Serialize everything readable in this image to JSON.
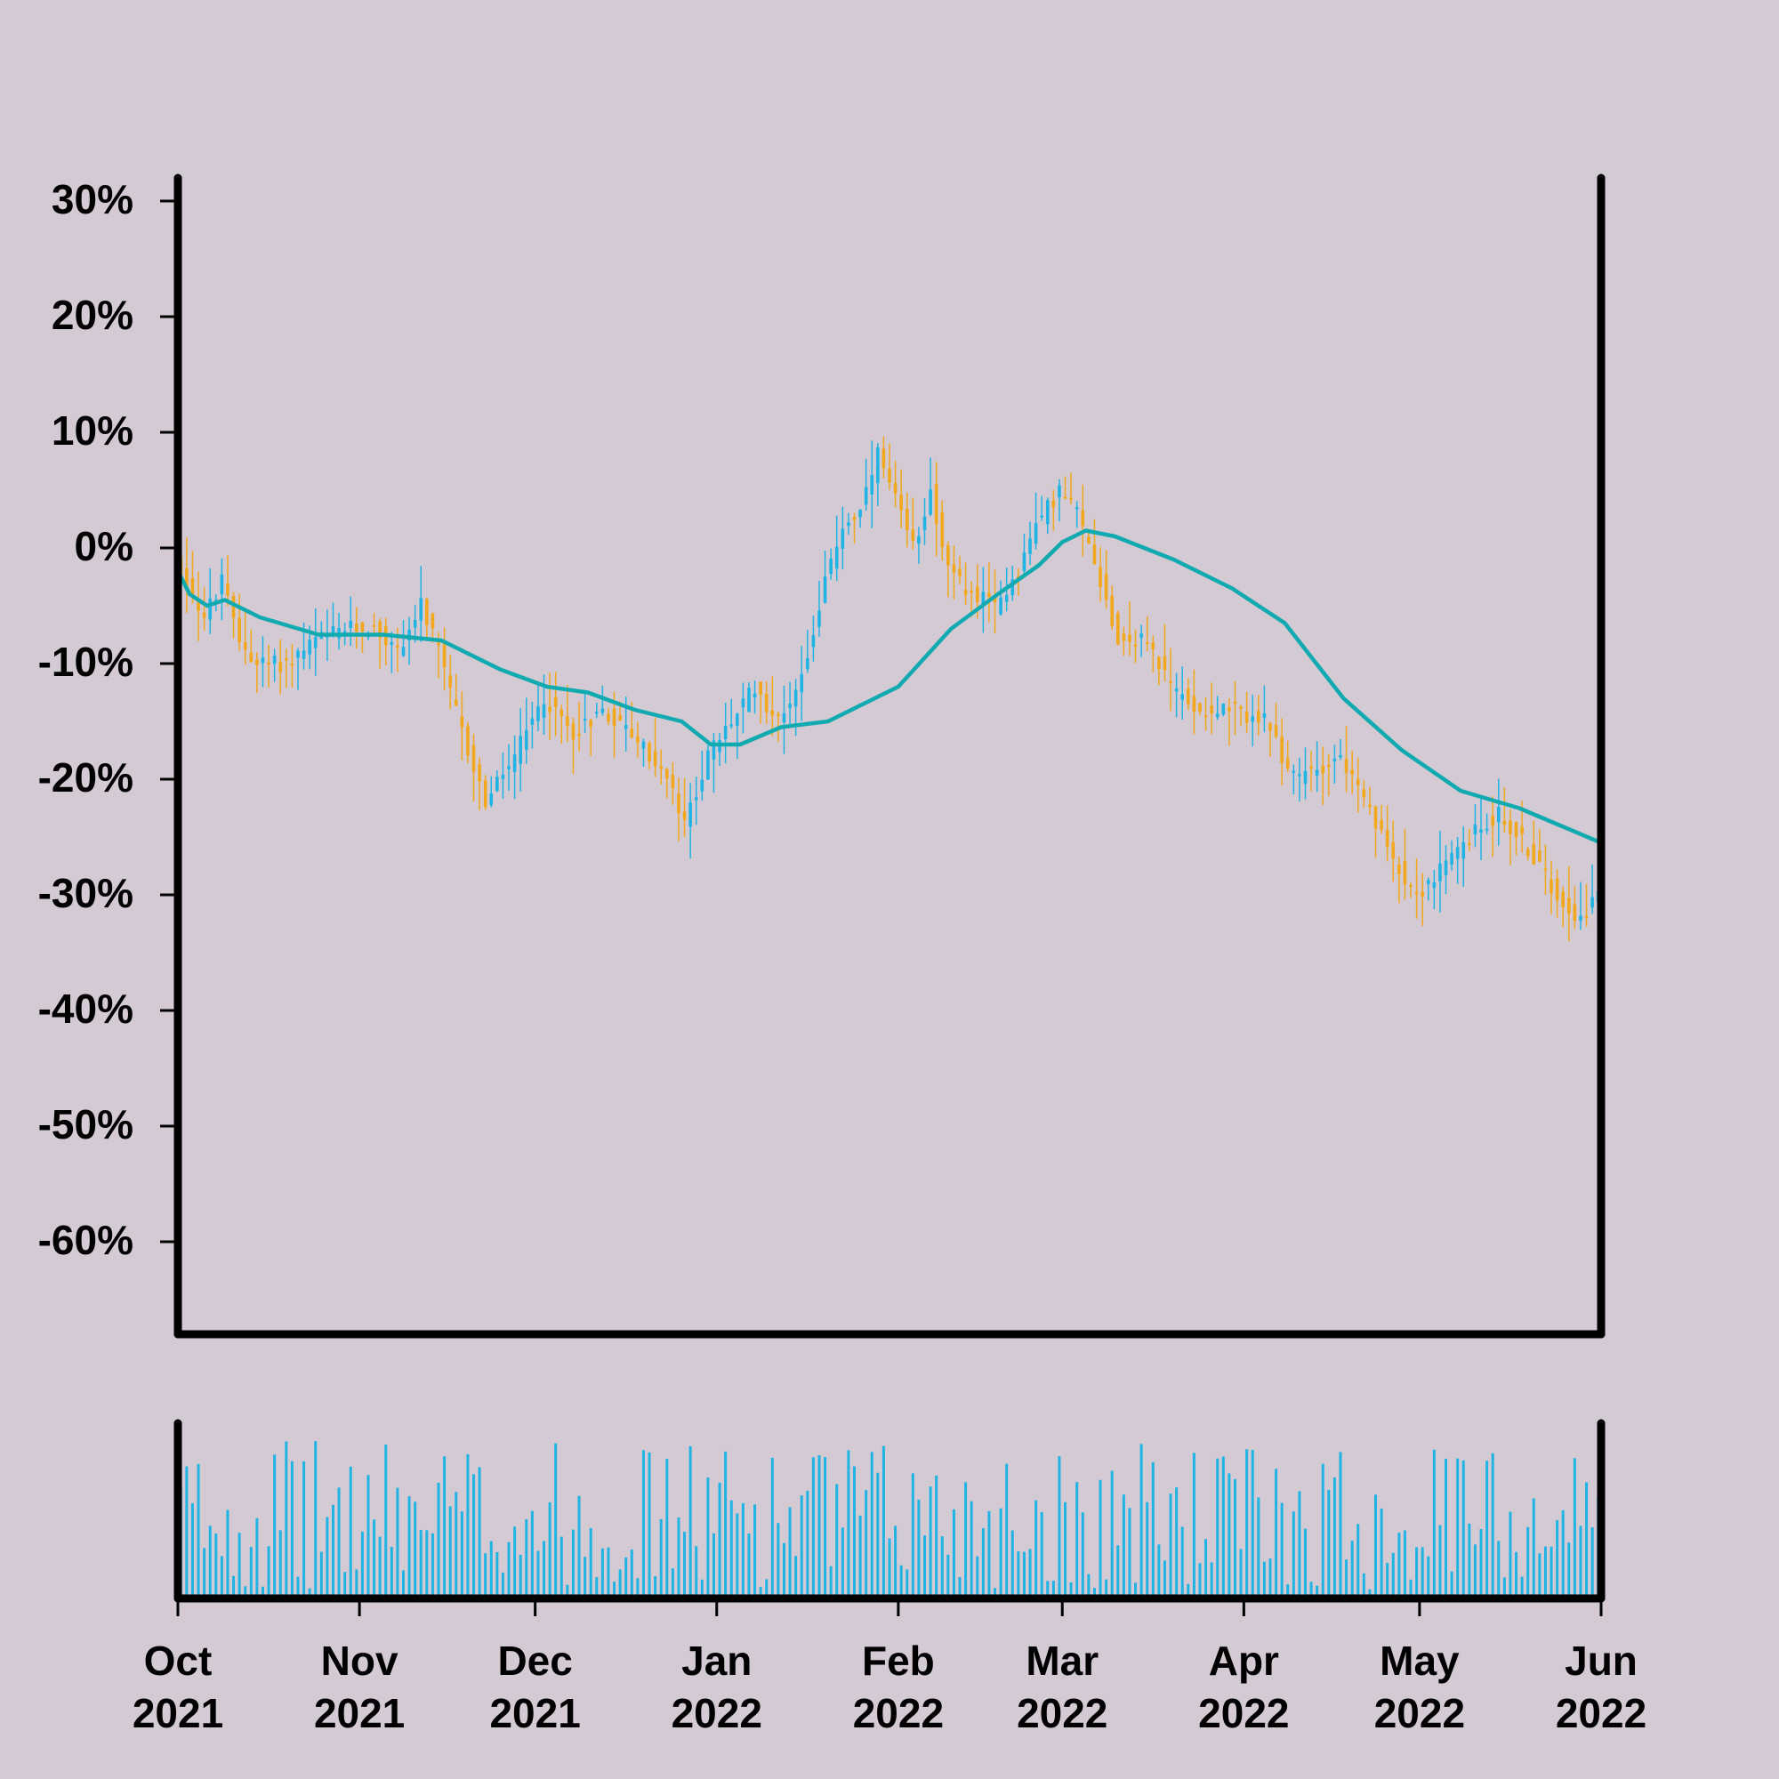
{
  "chart_data": {
    "type": "candlestick",
    "x_ticks": [
      {
        "month": "Oct",
        "year": "2021",
        "date": "2021-10-01"
      },
      {
        "month": "Nov",
        "year": "2021",
        "date": "2021-11-01"
      },
      {
        "month": "Dec",
        "year": "2021",
        "date": "2021-12-01"
      },
      {
        "month": "Jan",
        "year": "2022",
        "date": "2022-01-01"
      },
      {
        "month": "Feb",
        "year": "2022",
        "date": "2022-02-01"
      },
      {
        "month": "Mar",
        "year": "2022",
        "date": "2022-03-01"
      },
      {
        "month": "Apr",
        "year": "2022",
        "date": "2022-04-01"
      },
      {
        "month": "May",
        "year": "2022",
        "date": "2022-05-01"
      },
      {
        "month": "Jun",
        "year": "2022",
        "date": "2022-06-01"
      }
    ],
    "y_ticks": [
      30,
      20,
      10,
      0,
      -10,
      -20,
      -30,
      -40,
      -50,
      -60
    ],
    "y_tick_suffix": "%",
    "ylim": [
      -68,
      32
    ],
    "xlim": [
      "2021-10-01",
      "2022-06-01"
    ],
    "price_anchors": [
      [
        "2021-10-01",
        -1
      ],
      [
        "2021-10-04",
        -4
      ],
      [
        "2021-10-06",
        -6
      ],
      [
        "2021-10-09",
        -3
      ],
      [
        "2021-10-12",
        -8
      ],
      [
        "2021-10-15",
        -10
      ],
      [
        "2021-10-20",
        -10
      ],
      [
        "2021-10-25",
        -8
      ],
      [
        "2021-10-30",
        -7
      ],
      [
        "2021-11-04",
        -7
      ],
      [
        "2021-11-08",
        -9
      ],
      [
        "2021-11-12",
        -5
      ],
      [
        "2021-11-15",
        -9
      ],
      [
        "2021-11-19",
        -16
      ],
      [
        "2021-11-23",
        -22
      ],
      [
        "2021-11-28",
        -18
      ],
      [
        "2021-12-03",
        -13
      ],
      [
        "2021-12-08",
        -16
      ],
      [
        "2021-12-13",
        -14
      ],
      [
        "2021-12-18",
        -16
      ],
      [
        "2021-12-24",
        -20
      ],
      [
        "2021-12-27",
        -24
      ],
      [
        "2021-12-31",
        -18
      ],
      [
        "2022-01-04",
        -15
      ],
      [
        "2022-01-08",
        -12
      ],
      [
        "2022-01-12",
        -15
      ],
      [
        "2022-01-16",
        -11
      ],
      [
        "2022-01-20",
        -3
      ],
      [
        "2022-01-23",
        2
      ],
      [
        "2022-01-26",
        3
      ],
      [
        "2022-01-29",
        8
      ],
      [
        "2022-02-01",
        4
      ],
      [
        "2022-02-04",
        0
      ],
      [
        "2022-02-07",
        5
      ],
      [
        "2022-02-10",
        -2
      ],
      [
        "2022-02-14",
        -4
      ],
      [
        "2022-02-18",
        -5
      ],
      [
        "2022-02-22",
        -2
      ],
      [
        "2022-02-25",
        2
      ],
      [
        "2022-03-01",
        5
      ],
      [
        "2022-03-04",
        3
      ],
      [
        "2022-03-07",
        -1
      ],
      [
        "2022-03-11",
        -8
      ],
      [
        "2022-03-16",
        -8
      ],
      [
        "2022-03-20",
        -12
      ],
      [
        "2022-03-25",
        -14
      ],
      [
        "2022-03-30",
        -14
      ],
      [
        "2022-04-05",
        -15
      ],
      [
        "2022-04-10",
        -20
      ],
      [
        "2022-04-14",
        -19
      ],
      [
        "2022-04-18",
        -18
      ],
      [
        "2022-04-22",
        -22
      ],
      [
        "2022-04-26",
        -26
      ],
      [
        "2022-05-01",
        -30
      ],
      [
        "2022-05-05",
        -28
      ],
      [
        "2022-05-10",
        -25
      ],
      [
        "2022-05-15",
        -23
      ],
      [
        "2022-05-20",
        -26
      ],
      [
        "2022-05-25",
        -30
      ],
      [
        "2022-05-29",
        -32
      ],
      [
        "2022-06-01",
        -30
      ]
    ],
    "moving_average": [
      [
        "2021-10-01",
        -2
      ],
      [
        "2021-10-03",
        -4
      ],
      [
        "2021-10-06",
        -5
      ],
      [
        "2021-10-09",
        -4.5
      ],
      [
        "2021-10-15",
        -6
      ],
      [
        "2021-10-25",
        -7.5
      ],
      [
        "2021-11-05",
        -7.5
      ],
      [
        "2021-11-15",
        -8
      ],
      [
        "2021-11-25",
        -10.5
      ],
      [
        "2021-12-03",
        -12
      ],
      [
        "2021-12-10",
        -12.5
      ],
      [
        "2021-12-18",
        -14
      ],
      [
        "2021-12-26",
        -15
      ],
      [
        "2021-12-31",
        -17
      ],
      [
        "2022-01-05",
        -17
      ],
      [
        "2022-01-12",
        -15.5
      ],
      [
        "2022-01-20",
        -15
      ],
      [
        "2022-02-01",
        -12
      ],
      [
        "2022-02-10",
        -7
      ],
      [
        "2022-02-18",
        -4
      ],
      [
        "2022-02-25",
        -1.5
      ],
      [
        "2022-03-01",
        0.5
      ],
      [
        "2022-03-05",
        1.5
      ],
      [
        "2022-03-10",
        1
      ],
      [
        "2022-03-20",
        -1
      ],
      [
        "2022-03-30",
        -3.5
      ],
      [
        "2022-04-08",
        -6.5
      ],
      [
        "2022-04-18",
        -13
      ],
      [
        "2022-04-28",
        -17.5
      ],
      [
        "2022-05-08",
        -21
      ],
      [
        "2022-05-18",
        -22.5
      ],
      [
        "2022-05-25",
        -24
      ],
      [
        "2022-06-01",
        -25.5
      ]
    ],
    "volume_range": [
      0,
      100
    ],
    "colors": {
      "background": "#d4cad3",
      "up": "#1fb4e4",
      "down": "#f2a81c",
      "moving_average": "#11aab0",
      "volume": "#1fb4e4",
      "axis": "#000000"
    }
  }
}
